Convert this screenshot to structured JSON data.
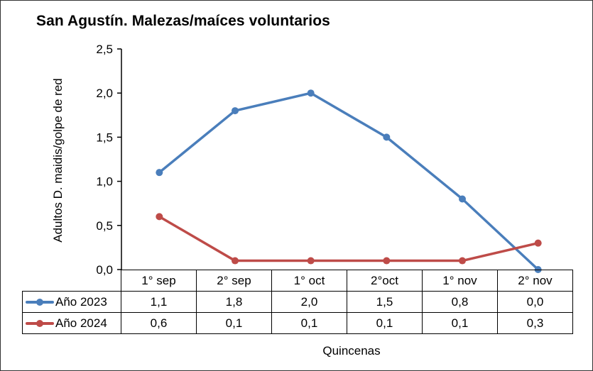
{
  "chart_data": {
    "type": "line",
    "title": "San Agustín. Malezas/maíces voluntarios",
    "xlabel": "Quincenas",
    "ylabel": "Adultos D. maidis/golpe de red",
    "categories": [
      "1° sep",
      "2° sep",
      "1° oct",
      "2°oct",
      "1° nov",
      "2° nov"
    ],
    "series": [
      {
        "name": "Año 2023",
        "color": "#4a7ebb",
        "values": [
          1.1,
          1.8,
          2.0,
          1.5,
          0.8,
          0.0
        ],
        "labels": [
          "1,1",
          "1,8",
          "2,0",
          "1,5",
          "0,8",
          "0,0"
        ]
      },
      {
        "name": "Año 2024",
        "color": "#be4b48",
        "values": [
          0.6,
          0.1,
          0.1,
          0.1,
          0.1,
          0.3
        ],
        "labels": [
          "0,6",
          "0,1",
          "0,1",
          "0,1",
          "0,1",
          "0,3"
        ]
      }
    ],
    "ylim": [
      0,
      2.5
    ],
    "yticks": [
      "0,0",
      "0,5",
      "1,0",
      "1,5",
      "2,0",
      "2,5"
    ],
    "grid": false,
    "legend_position": "data-table"
  }
}
